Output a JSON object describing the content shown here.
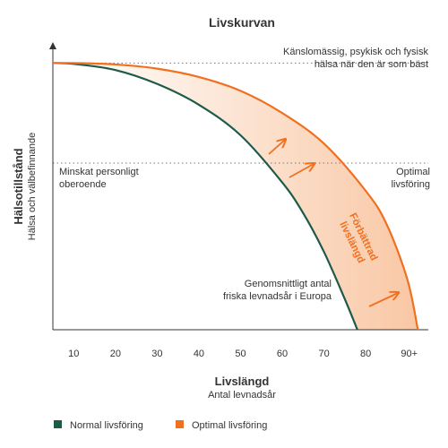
{
  "chart_data": {
    "type": "line",
    "title": "Livskurvan",
    "xlabel": "Livslängd",
    "xlabel_sub": "Antal levnadsår",
    "ylabel": "Hälsotillstånd",
    "ylabel_sub": "Hälsa och välbefinnande",
    "x_ticks": [
      "10",
      "20",
      "30",
      "40",
      "50",
      "60",
      "70",
      "80",
      "90+"
    ],
    "x_tick_values": [
      10,
      20,
      30,
      40,
      50,
      60,
      70,
      80,
      90
    ],
    "xlim": [
      5,
      95
    ],
    "ylim": [
      0,
      100
    ],
    "y_ticks_shown": false,
    "grid": false,
    "legend_position": "bottom-left",
    "series": [
      {
        "name": "Normal livsföring",
        "color": "#1e5a48",
        "x": [
          5,
          10,
          20,
          30,
          40,
          50,
          60,
          65,
          70,
          75,
          78
        ],
        "y": [
          96,
          95.7,
          93.5,
          88.5,
          81,
          70,
          53,
          42,
          28,
          11,
          0
        ]
      },
      {
        "name": "Optimal livsföring",
        "color": "#f07020",
        "x": [
          5,
          10,
          20,
          30,
          40,
          50,
          60,
          70,
          80,
          85,
          90,
          92.5
        ],
        "y": [
          96,
          96,
          95.5,
          94,
          91,
          86,
          78,
          67,
          50,
          38,
          18,
          0
        ]
      }
    ],
    "reference_lines": [
      {
        "y": 96,
        "label": "Känslomässig, psykisk och fysisk hälsa när den är som bäst"
      },
      {
        "y": 60,
        "label_left": "Minskat personligt oberoende",
        "label_right": "Optimal livsföring"
      }
    ],
    "annotations": {
      "top_right_line1": "Känslomässig, psykisk och fysisk",
      "top_right_line2": "hälsa när den är som bäst",
      "mid_left_line1": "Minskat personligt",
      "mid_left_line2": "oberoende",
      "mid_right_line1": "Optimal",
      "mid_right_line2": "livsföring",
      "bottom_line1": "Genomsnittligt antal",
      "bottom_line2": "friska levnadsår i Europa",
      "band_line1": "Förbättrad",
      "band_line2": "livslängd"
    },
    "band_fill": "#fcd9c0"
  },
  "legend": {
    "items": [
      {
        "label": "Normal livsföring",
        "color": "#1e5a48"
      },
      {
        "label": "Optimal livsföring",
        "color": "#f07020"
      }
    ]
  }
}
